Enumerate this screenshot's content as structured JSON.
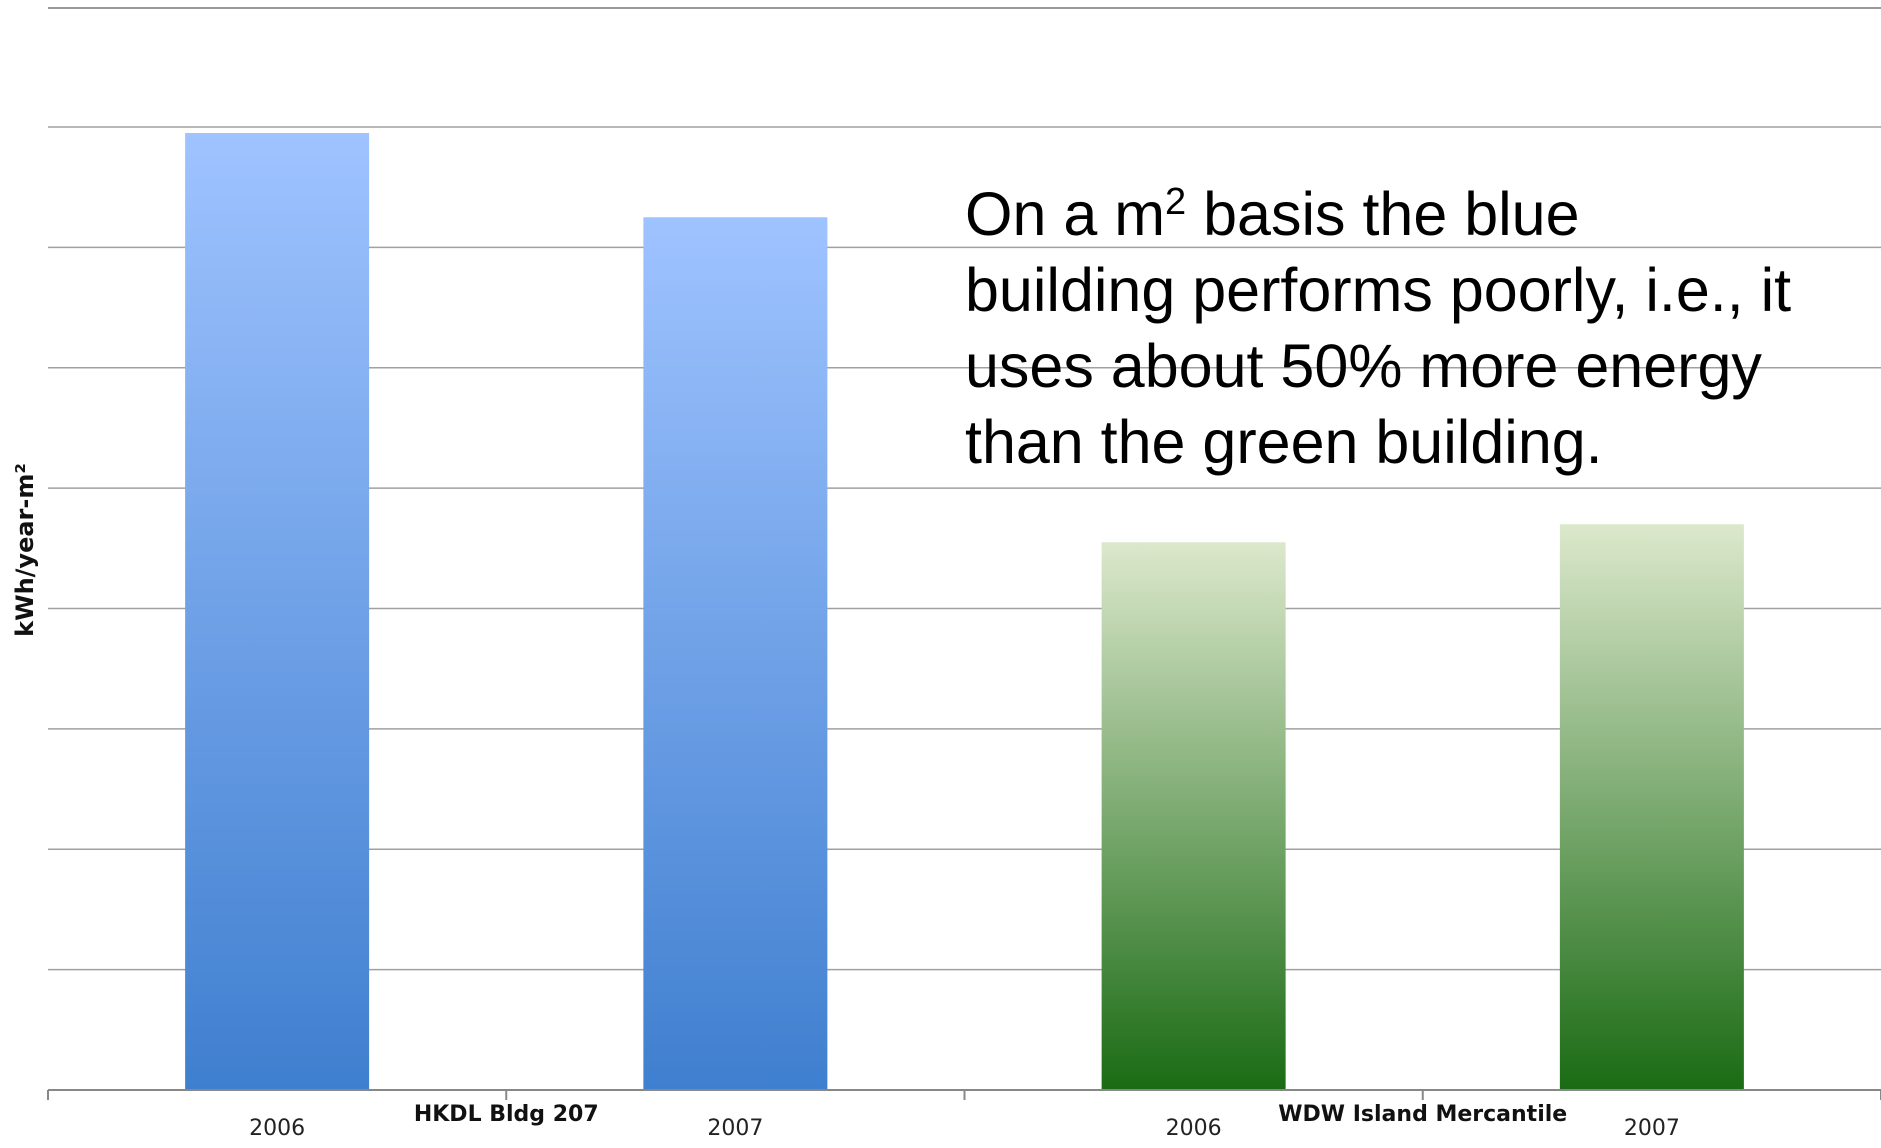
{
  "chart_data": {
    "type": "bar",
    "ylabel": "kWh/year-m²",
    "ylim": [
      0,
      8
    ],
    "y_gridlines": 8,
    "grid": true,
    "groups": [
      {
        "label": "HKDL Bldg 207",
        "bars": [
          {
            "category": "2006",
            "value": 7.95,
            "color_top": "#9fc3ff",
            "color_bottom": "#3f7fcf"
          },
          {
            "category": "2007",
            "value": 7.25,
            "color_top": "#9fc3ff",
            "color_bottom": "#3f7fcf"
          }
        ]
      },
      {
        "label": "WDW Island Mercantile",
        "bars": [
          {
            "category": "2006",
            "value": 4.55,
            "color_top": "#dce8cc",
            "color_bottom": "#1a6b14"
          },
          {
            "category": "2007",
            "value": 4.7,
            "color_top": "#dce8cc",
            "color_bottom": "#1a6b14"
          }
        ]
      }
    ]
  },
  "annotation": {
    "line1_pre": "On a m",
    "line1_sup": "2",
    "line1_post": " basis the blue",
    "line2": "building performs poorly, i.e., it",
    "line3": "uses about 50% more energy",
    "line4": "than the green building."
  }
}
